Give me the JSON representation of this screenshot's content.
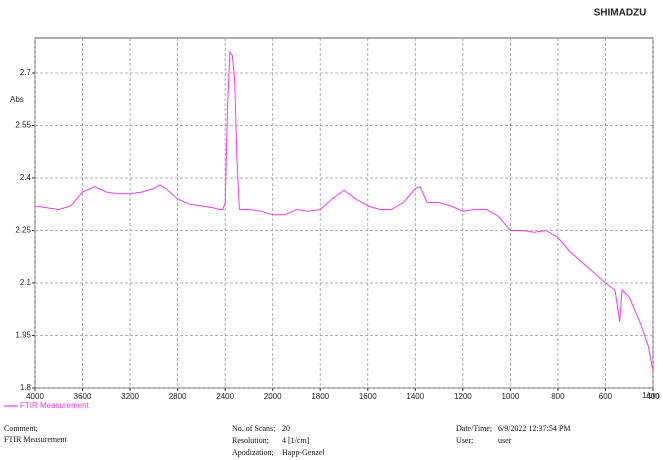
{
  "brand": "SHIMADZU",
  "chart_data": {
    "type": "line",
    "ylabel": "Abs",
    "xlabel": "1/cm",
    "x": [
      4000,
      3900,
      3800,
      3700,
      3600,
      3500,
      3400,
      3300,
      3200,
      3100,
      3000,
      2950,
      2900,
      2800,
      2700,
      2600,
      2500,
      2450,
      2420,
      2400,
      2380,
      2360,
      2340,
      2320,
      2300,
      2280,
      2200,
      2100,
      2000,
      1950,
      1900,
      1850,
      1800,
      1750,
      1700,
      1650,
      1600,
      1550,
      1500,
      1450,
      1400,
      1380,
      1350,
      1300,
      1250,
      1200,
      1150,
      1100,
      1050,
      1000,
      950,
      900,
      850,
      800,
      750,
      700,
      650,
      600,
      560,
      540,
      530,
      500,
      450,
      420,
      400
    ],
    "series": [
      {
        "name": "FTIR Measurement",
        "color": "#ff33ff",
        "values": [
          2.32,
          2.315,
          2.31,
          2.32,
          2.36,
          2.375,
          2.36,
          2.355,
          2.355,
          2.36,
          2.37,
          2.38,
          2.37,
          2.34,
          2.325,
          2.32,
          2.315,
          2.31,
          2.31,
          2.33,
          2.6,
          2.76,
          2.75,
          2.68,
          2.45,
          2.31,
          2.31,
          2.305,
          2.295,
          2.295,
          2.31,
          2.305,
          2.31,
          2.34,
          2.365,
          2.34,
          2.32,
          2.31,
          2.31,
          2.33,
          2.37,
          2.375,
          2.33,
          2.33,
          2.32,
          2.305,
          2.31,
          2.31,
          2.29,
          2.25,
          2.25,
          2.245,
          2.25,
          2.23,
          2.19,
          2.16,
          2.13,
          2.1,
          2.08,
          1.99,
          2.08,
          2.06,
          1.98,
          1.92,
          1.85
        ]
      }
    ],
    "xlim": [
      4000,
      400
    ],
    "ylim": [
      1.8,
      2.8
    ],
    "xticks": [
      4000,
      3600,
      3200,
      2800,
      2400,
      2000,
      1800,
      1600,
      1400,
      1200,
      1000,
      800,
      600,
      400
    ],
    "yticks": [
      2.7,
      2.55,
      2.4,
      2.25,
      2.1,
      1.95,
      1.8
    ],
    "grid": true
  },
  "footer": {
    "comment_label": "Comment;",
    "comment": "FTIR Measurement",
    "scans_label": "No. of Scans;",
    "scans": "20",
    "resolution_label": "Resolution;",
    "resolution": "4 [1/cm]",
    "apodization_label": "Apodization;",
    "apodization": "Happ-Genzel",
    "datetime_label": "Date/Time;",
    "datetime": "6/9/2022 12:37:54 PM",
    "user_label": "User;",
    "user": "user"
  }
}
